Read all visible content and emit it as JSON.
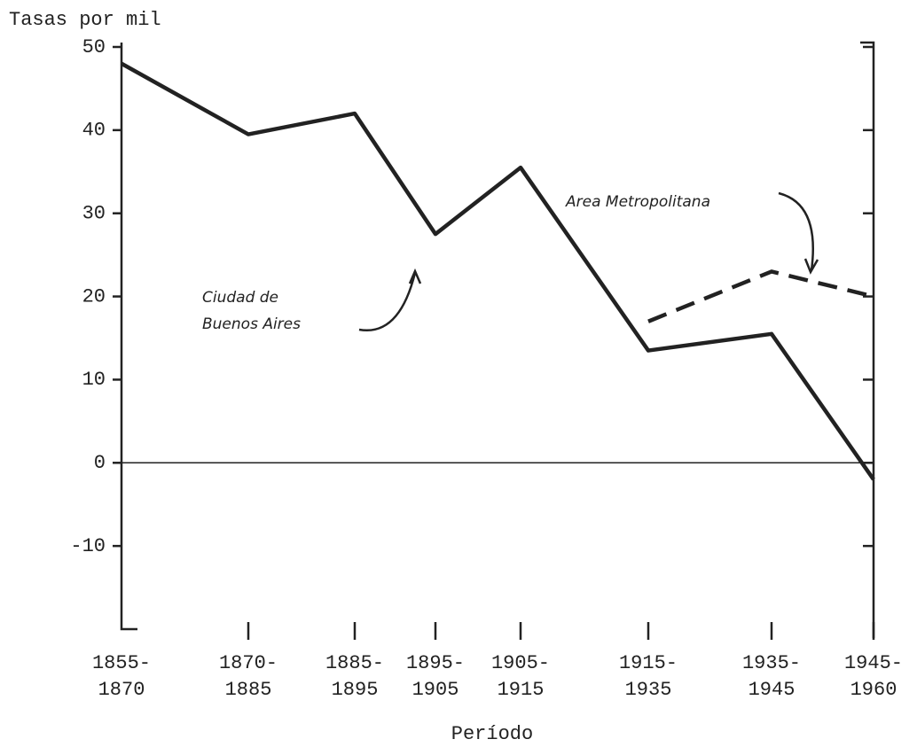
{
  "chart_data": {
    "type": "line",
    "title": "Tasas por mil",
    "x_label": "Período",
    "categories": [
      "1855-\n1870",
      "1870-\n1885",
      "1885-\n1895",
      "1895-\n1905",
      "1905-\n1915",
      "1915-\n1935",
      "1935-\n1945",
      "1945-\n1960"
    ],
    "series": [
      {
        "name": "Ciudad de\nBuenos Aires",
        "color": "#222222",
        "style": "solid",
        "values": [
          48,
          39.5,
          42,
          27.5,
          35.5,
          13.5,
          15.5,
          -2
        ]
      },
      {
        "name": "Area Metropolitana",
        "color": "#222222",
        "style": "dashed",
        "values": [
          null,
          null,
          null,
          null,
          null,
          17,
          23,
          20
        ]
      }
    ],
    "ylim": [
      -20,
      50
    ],
    "yticks": [
      -10,
      0,
      10,
      20,
      30,
      40,
      50
    ]
  }
}
